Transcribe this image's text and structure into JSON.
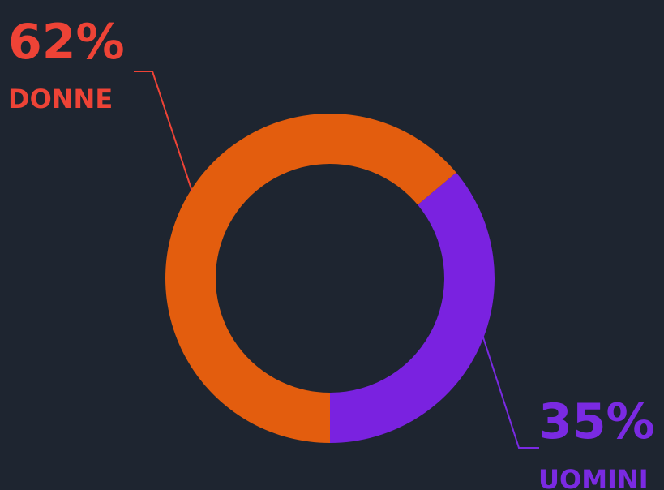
{
  "chart_data": {
    "type": "donut",
    "categories": [
      "DONNE",
      "UOMINI"
    ],
    "values": [
      62,
      35
    ],
    "value_labels": [
      "62%",
      "35%"
    ],
    "colors": [
      "#e35d0e",
      "#7a22e0"
    ],
    "label_colors": [
      "#ee4336",
      "#7a2ae2"
    ]
  }
}
